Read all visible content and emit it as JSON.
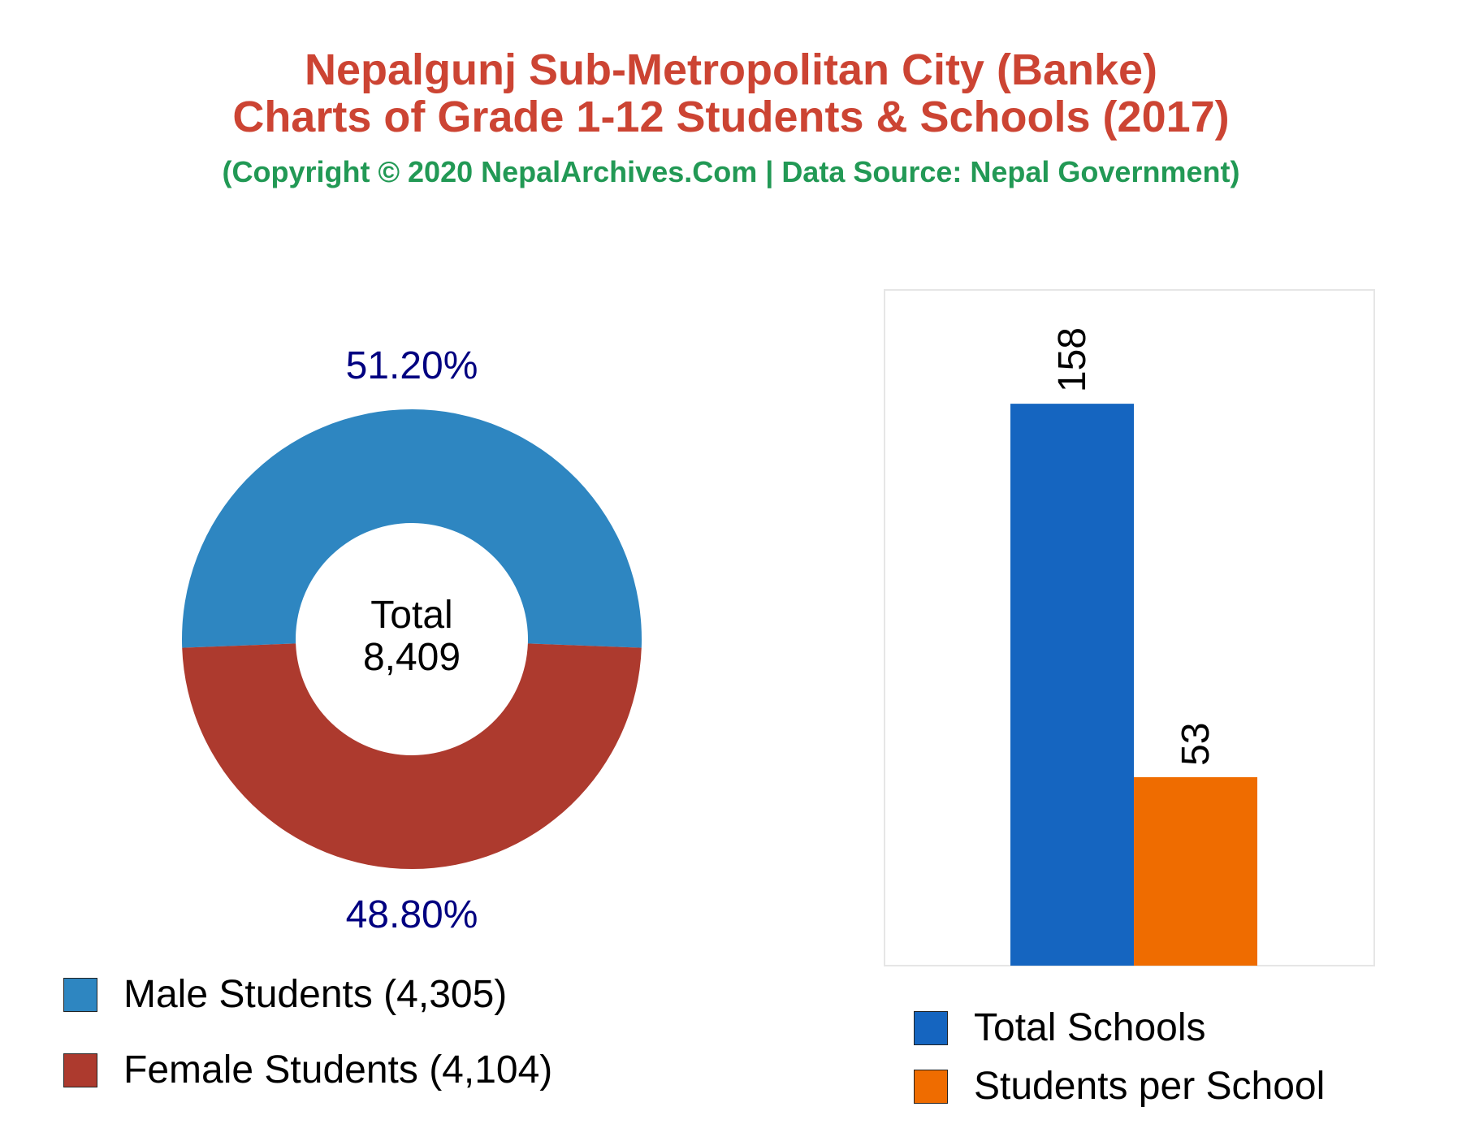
{
  "title_line1": "Nepalgunj Sub-Metropolitan City (Banke)",
  "title_line2": "Charts of Grade 1-12 Students & Schools (2017)",
  "subtitle": "(Copyright © 2020 NepalArchives.Com | Data Source: Nepal Government)",
  "colors": {
    "title": "#cc4433",
    "subtitle": "#229955",
    "male": "#2e86c1",
    "female": "#ad3a2e",
    "percent_label": "#000080",
    "total_schools": "#1565c0",
    "students_per_school": "#ef6c00"
  },
  "chart_data": [
    {
      "type": "pie",
      "variant": "donut",
      "center_label": "Total",
      "center_value": "8,409",
      "slices": [
        {
          "name": "Male Students",
          "value": 4305,
          "display": "4,305",
          "percent_label": "51.20%"
        },
        {
          "name": "Female Students",
          "value": 4104,
          "display": "4,104",
          "percent_label": "48.80%"
        }
      ],
      "legend": [
        {
          "label": "Male Students (4,305)"
        },
        {
          "label": "Female Students (4,104)"
        }
      ],
      "legend_position": "bottom"
    },
    {
      "type": "bar",
      "categories": [
        "Total Schools",
        "Students per School"
      ],
      "values": [
        158,
        53
      ],
      "data_labels": [
        "158",
        "53"
      ],
      "ylim": [
        0,
        190
      ],
      "grid": false,
      "legend": [
        {
          "label": "Total Schools"
        },
        {
          "label": "Students per School"
        }
      ],
      "legend_position": "bottom"
    }
  ]
}
